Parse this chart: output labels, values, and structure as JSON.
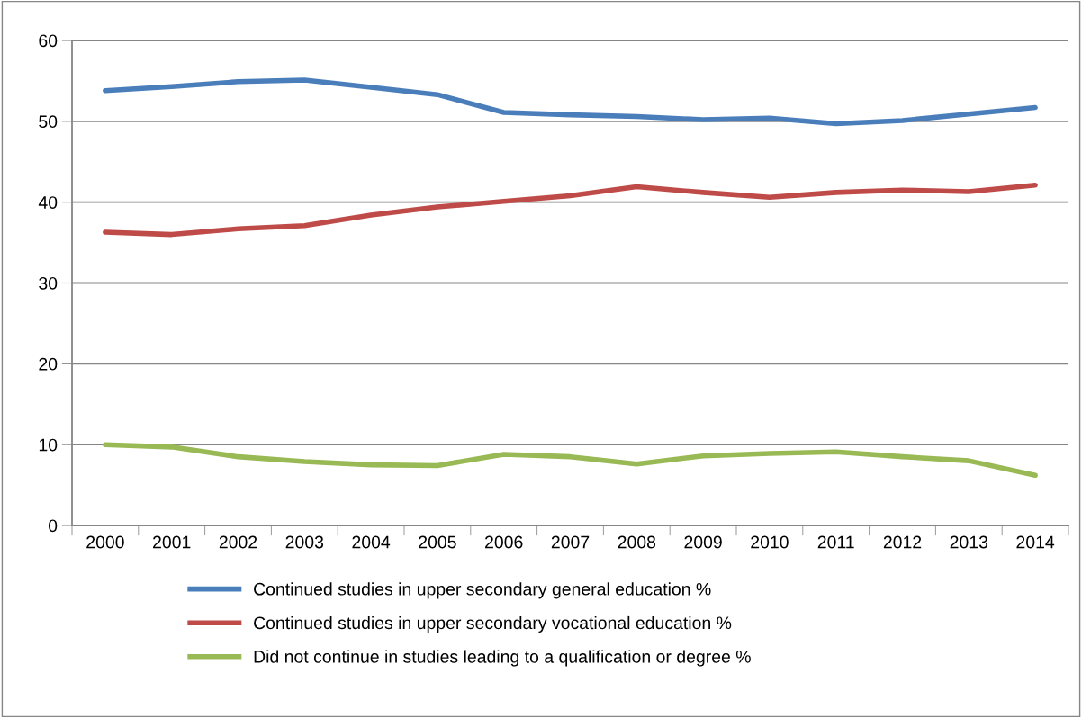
{
  "chart_data": {
    "type": "line",
    "categories": [
      "2000",
      "2001",
      "2002",
      "2003",
      "2004",
      "2005",
      "2006",
      "2007",
      "2008",
      "2009",
      "2010",
      "2011",
      "2012",
      "2013",
      "2014"
    ],
    "series": [
      {
        "name": "Continued studies in upper secondary general education %",
        "color": "#4a7ebb",
        "values": [
          53.8,
          54.3,
          54.9,
          55.1,
          54.2,
          53.3,
          51.1,
          50.8,
          50.6,
          50.2,
          50.4,
          49.7,
          50.1,
          50.9,
          51.7
        ]
      },
      {
        "name": "Continued studies in upper secondary vocational education %",
        "color": "#be4b48",
        "values": [
          36.3,
          36.0,
          36.7,
          37.1,
          38.4,
          39.4,
          40.1,
          40.8,
          41.9,
          41.2,
          40.6,
          41.2,
          41.5,
          41.3,
          42.1
        ]
      },
      {
        "name": "Did not continue in studies leading to a qualification or degree %",
        "color": "#98b954",
        "values": [
          10.0,
          9.7,
          8.5,
          7.9,
          7.5,
          7.4,
          8.8,
          8.5,
          7.6,
          8.6,
          8.9,
          9.1,
          8.5,
          8.0,
          6.2
        ]
      }
    ],
    "ylim": [
      0,
      60
    ],
    "yticks": [
      0,
      10,
      20,
      30,
      40,
      50,
      60
    ],
    "grid": "y",
    "legend": "bottom",
    "marker": "none",
    "line_style": "solid"
  }
}
